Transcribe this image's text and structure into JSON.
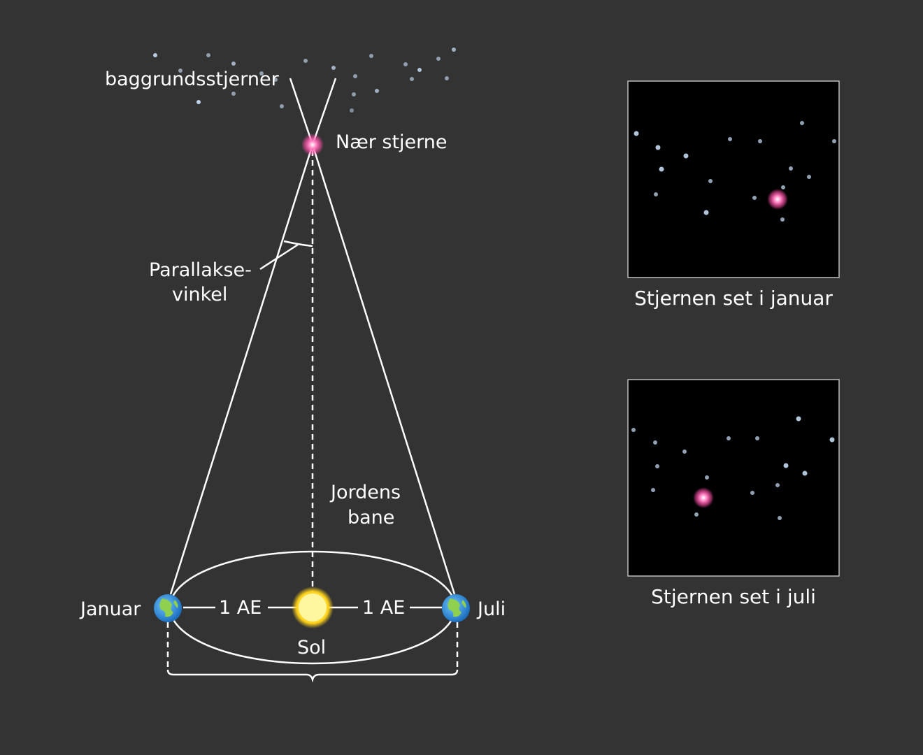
{
  "labels": {
    "background_stars": "baggrundsstjerner",
    "near_star": "Nær stjerne",
    "parallax_line1": "Parallakse-",
    "parallax_line2": "vinkel",
    "orbit_line1": "Jordens",
    "orbit_line2": "bane",
    "january": "Januar",
    "july": "Juli",
    "au_left": "1 AE",
    "au_right": "1 AE",
    "sun": "Sol"
  },
  "panels": [
    {
      "caption": "Stjernen set i januar"
    },
    {
      "caption": "Stjernen set i juli"
    }
  ],
  "colors": {
    "background": "#333333",
    "near_star": "#ff4fa8",
    "sun": "#ffd21a",
    "panel_bg": "#000000",
    "star_dot": "#cfe6ff"
  },
  "icons": {
    "earth": "earth-icon",
    "sun": "sun-icon",
    "near_star": "pink-star-icon"
  }
}
